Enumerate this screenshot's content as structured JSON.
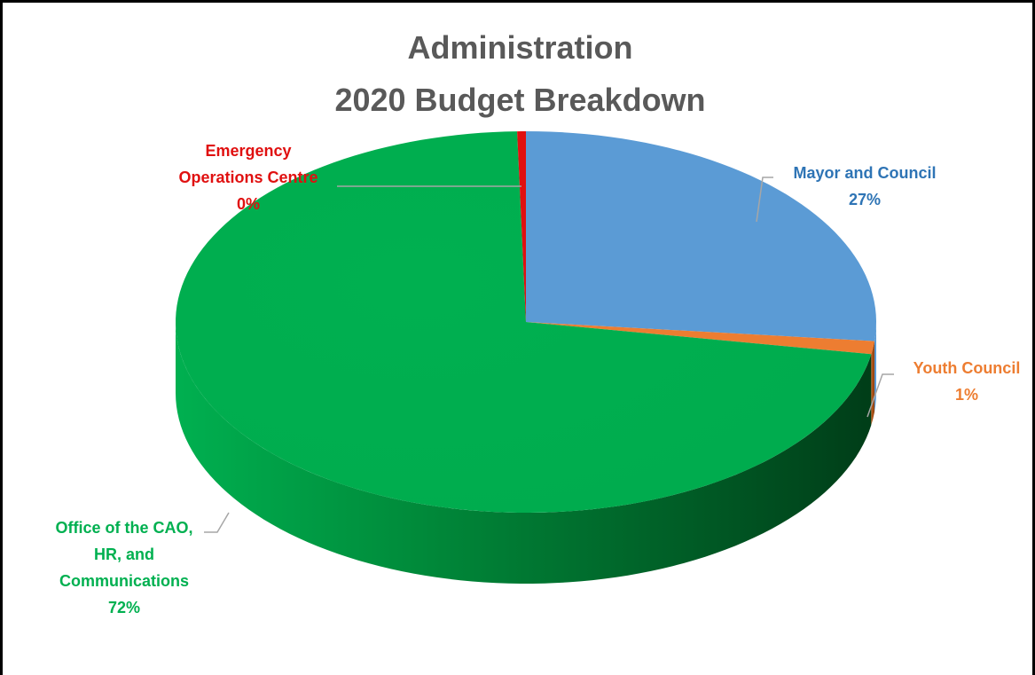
{
  "chart_data": {
    "type": "pie",
    "title": [
      "Administration",
      "2020 Budget Breakdown"
    ],
    "slices": [
      {
        "label": [
          "Mayor and Council"
        ],
        "pct_label": "27%",
        "value": 26.6,
        "color": "#5B9BD5",
        "label_color": "#2E74B5"
      },
      {
        "label": [
          "Youth Council"
        ],
        "pct_label": "1%",
        "value": 1.1,
        "color": "#ED7D31",
        "label_color": "#ED7D31"
      },
      {
        "label": [
          "Office of the CAO,",
          "HR, and",
          "Communications"
        ],
        "pct_label": "72%",
        "value": 71.9,
        "color": "#00B050",
        "label_color": "#00B050"
      },
      {
        "label": [
          "Emergency",
          "Operations Centre"
        ],
        "pct_label": "0%",
        "value": 0.4,
        "color": "#E01010",
        "label_color": "#E01010"
      }
    ],
    "style": "3d"
  }
}
